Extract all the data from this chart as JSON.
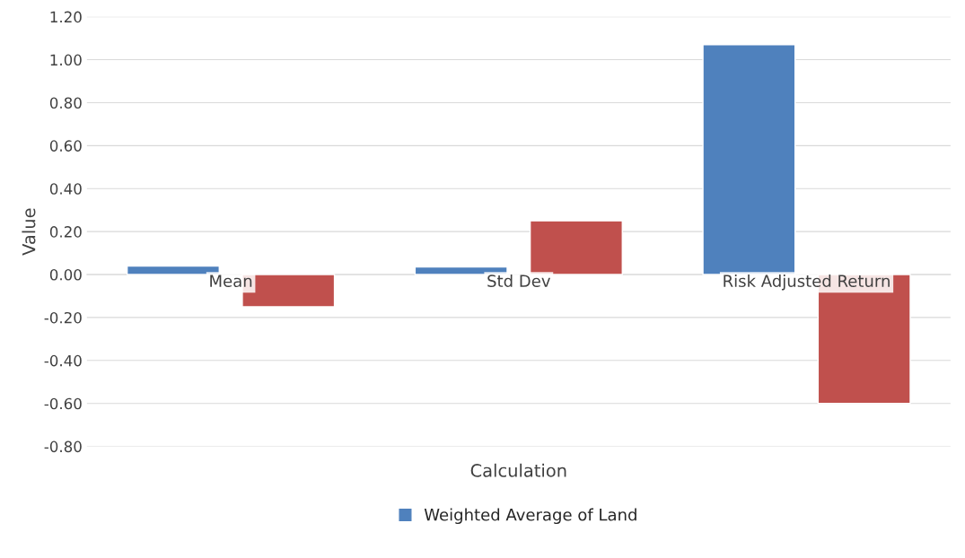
{
  "chart_data": {
    "type": "bar",
    "xlabel": "Calculation",
    "ylabel": "Value",
    "categories": [
      "Mean",
      "Std Dev",
      "Risk Adjusted Return"
    ],
    "series": [
      {
        "name": "Weighted Average of Land",
        "color": "#4f81bd",
        "values": [
          0.04,
          0.035,
          1.07
        ]
      },
      {
        "color": "#c0504d",
        "values": [
          -0.15,
          0.25,
          -0.6
        ]
      }
    ],
    "ylim": [
      -0.8,
      1.2
    ],
    "yticks": [
      {
        "value": -0.8,
        "label": "-0.80"
      },
      {
        "value": -0.6,
        "label": "-0.60"
      },
      {
        "value": -0.4,
        "label": "-0.40"
      },
      {
        "value": -0.2,
        "label": "-0.20"
      },
      {
        "value": 0,
        "label": "0.00"
      },
      {
        "value": 0.2,
        "label": "0.20"
      },
      {
        "value": 0.4,
        "label": "0.40"
      },
      {
        "value": 0.6,
        "label": "0.60"
      },
      {
        "value": 0.8,
        "label": "0.80"
      },
      {
        "value": 1.0,
        "label": "1.00"
      },
      {
        "value": 1.2,
        "label": "1.20"
      }
    ],
    "grid": "y",
    "legend": "bottom"
  }
}
